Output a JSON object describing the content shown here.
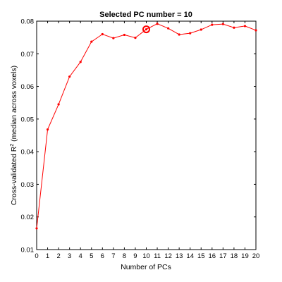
{
  "chart_data": {
    "type": "line",
    "title": "Selected PC number = 10",
    "xlabel": "Number of PCs",
    "ylabel_prefix": "Cross-validated R",
    "ylabel_sup": "2",
    "ylabel_suffix": " (median across voxels)",
    "xlim": [
      0,
      20
    ],
    "ylim": [
      0.01,
      0.08
    ],
    "xticks": [
      0,
      1,
      2,
      3,
      4,
      5,
      6,
      7,
      8,
      9,
      10,
      11,
      12,
      13,
      14,
      15,
      16,
      17,
      18,
      19,
      20
    ],
    "yticks": [
      0.01,
      0.02,
      0.03,
      0.04,
      0.05,
      0.06,
      0.07,
      0.08
    ],
    "ytick_labels": [
      "0.01",
      "0.02",
      "0.03",
      "0.04",
      "0.05",
      "0.06",
      "0.07",
      "0.08"
    ],
    "grid": false,
    "series": [
      {
        "x": [
          0,
          1,
          2,
          3,
          4,
          5,
          6,
          7,
          8,
          9,
          10,
          11,
          12,
          13,
          14,
          15,
          16,
          17,
          18,
          19,
          20
        ],
        "values": [
          0.0165,
          0.0468,
          0.0545,
          0.063,
          0.0675,
          0.0737,
          0.076,
          0.0748,
          0.0758,
          0.0749,
          0.0775,
          0.0792,
          0.0778,
          0.0759,
          0.0763,
          0.0774,
          0.0789,
          0.0791,
          0.078,
          0.0785,
          0.0772
        ],
        "color": "#ff0000"
      }
    ],
    "highlight": {
      "x": 10,
      "y": 0.0775
    }
  }
}
